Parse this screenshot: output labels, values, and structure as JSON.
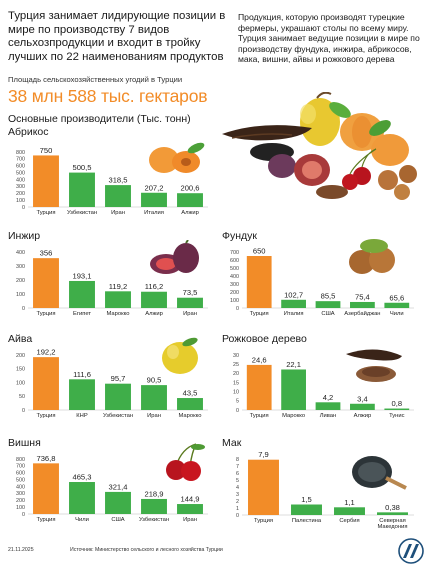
{
  "header": {
    "title": "Турция занимает лидирующие позиции в мире по производству 7 видов сельхозпродукции и входит в тройку лучших по 22 наименованиям продуктов",
    "intro": "Продукция, которую производят турецкие фермеры, украшают столы по всему миру. Турция занимает ведущие позиции в мире по производству фундука, инжира, абрикосов, мака, вишни, айвы и рожкового дерева",
    "area_label": "Площадь сельскохозяйственных угодий в Турции",
    "area_value": "38 млн 588 тыс. гектаров",
    "producers_label": "Основные производители (Тыс. тонн)"
  },
  "colors": {
    "turkey": "#f28c28",
    "other": "#3fae49",
    "accent": "#f28c28"
  },
  "footer": {
    "date": "21.11.2025",
    "source": "Источник: Министерство сельского и лесного хозяйства Турции",
    "logo": "aa-logo-icon"
  },
  "chart_data": [
    {
      "type": "bar",
      "title": "Абрикос",
      "icon": "apricot-icon",
      "categories": [
        "Турция",
        "Узбекистан",
        "Иран",
        "Италия",
        "Алжир"
      ],
      "values": [
        750,
        500.5,
        318.5,
        207.2,
        200.6
      ],
      "value_labels": [
        "750",
        "500,5",
        "318,5",
        "207,2",
        "200,6"
      ],
      "yticks": [
        0,
        100,
        200,
        300,
        400,
        500,
        600,
        700,
        800
      ],
      "ylim": [
        0,
        800
      ]
    },
    {
      "type": "bar",
      "title": "Инжир",
      "icon": "fig-icon",
      "categories": [
        "Турция",
        "Египет",
        "Марокко",
        "Алжир",
        "Иран"
      ],
      "values": [
        356,
        193.1,
        119.2,
        116.2,
        73.5
      ],
      "value_labels": [
        "356",
        "193,1",
        "119,2",
        "116,2",
        "73,5"
      ],
      "yticks": [
        0,
        100,
        200,
        300,
        400
      ],
      "ylim": [
        0,
        400
      ]
    },
    {
      "type": "bar",
      "title": "Фундук",
      "icon": "hazelnut-icon",
      "categories": [
        "Турция",
        "Италия",
        "США",
        "Азербайджан",
        "Чили"
      ],
      "values": [
        650,
        102.7,
        85.5,
        75.4,
        65.6
      ],
      "value_labels": [
        "650",
        "102,7",
        "85,5",
        "75,4",
        "65,6"
      ],
      "yticks": [
        0,
        100,
        200,
        300,
        400,
        500,
        600,
        700
      ],
      "ylim": [
        0,
        700
      ]
    },
    {
      "type": "bar",
      "title": "Айва",
      "icon": "quince-icon",
      "categories": [
        "Турция",
        "КНР",
        "Узбекистан",
        "Иран",
        "Марокко"
      ],
      "values": [
        192.2,
        111.6,
        95.7,
        90.5,
        43.5
      ],
      "value_labels": [
        "192,2",
        "111,6",
        "95,7",
        "90,5",
        "43,5"
      ],
      "yticks": [
        0,
        50,
        100,
        150,
        200
      ],
      "ylim": [
        0,
        200
      ]
    },
    {
      "type": "bar",
      "title": "Рожковое дерево",
      "icon": "carob-icon",
      "categories": [
        "Турция",
        "Марокко",
        "Ливан",
        "Алжир",
        "Тунис"
      ],
      "values": [
        24.6,
        22.1,
        4.2,
        3.4,
        0.8
      ],
      "value_labels": [
        "24,6",
        "22,1",
        "4,2",
        "3,4",
        "0,8"
      ],
      "yticks": [
        0,
        5,
        10,
        15,
        20,
        25,
        30
      ],
      "ylim": [
        0,
        30
      ]
    },
    {
      "type": "bar",
      "title": "Вишня",
      "icon": "cherry-icon",
      "categories": [
        "Турция",
        "Чили",
        "США",
        "Узбекистан",
        "Иран"
      ],
      "values": [
        736.8,
        465.3,
        321.4,
        218.9,
        144.9
      ],
      "value_labels": [
        "736,8",
        "465,3",
        "321,4",
        "218,9",
        "144,9"
      ],
      "yticks": [
        0,
        100,
        200,
        300,
        400,
        500,
        600,
        700,
        800
      ],
      "ylim": [
        0,
        800
      ]
    },
    {
      "type": "bar",
      "title": "Мак",
      "icon": "poppy-seed-icon",
      "categories": [
        "Турция",
        "Палестина",
        "Сербия",
        "Северная Македония"
      ],
      "values": [
        7.9,
        1.5,
        1.1,
        0.38
      ],
      "value_labels": [
        "7,9",
        "1,5",
        "1,1",
        "0,38"
      ],
      "yticks": [
        0,
        1,
        2,
        3,
        4,
        5,
        6,
        7,
        8
      ],
      "ylim": [
        0,
        8
      ]
    }
  ]
}
